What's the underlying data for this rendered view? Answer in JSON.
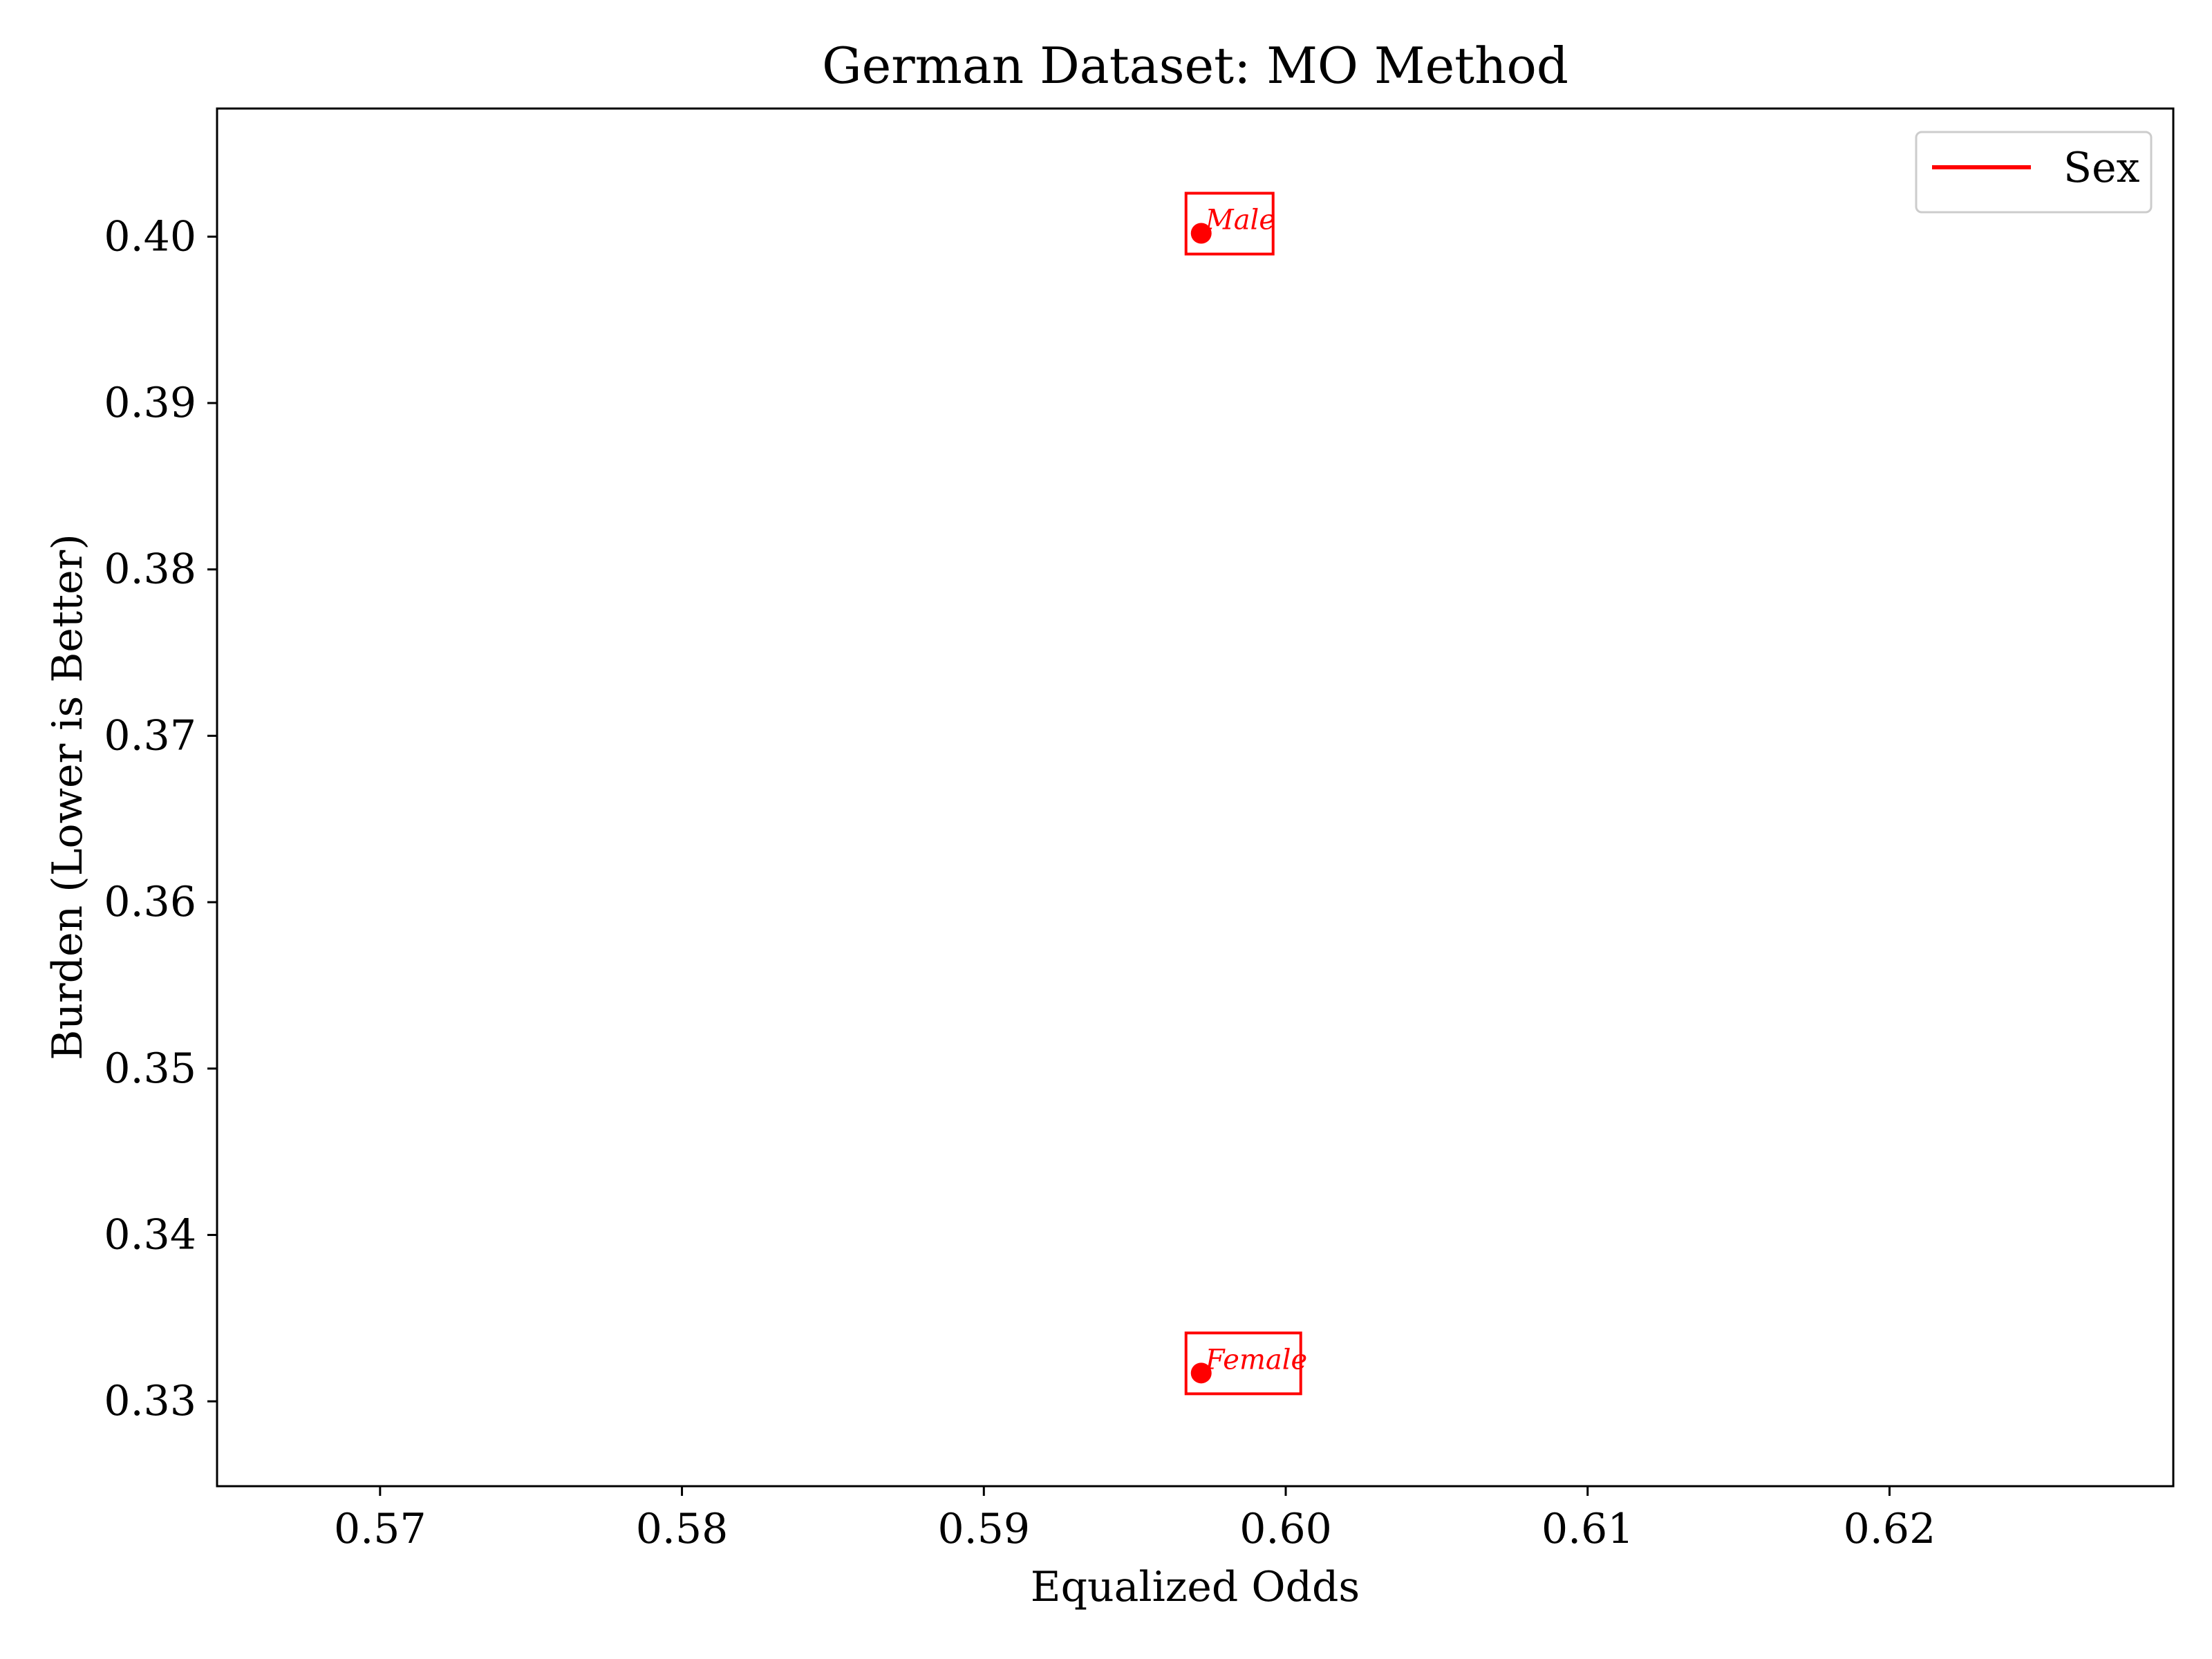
{
  "chart_data": {
    "type": "scatter",
    "title": "German Dataset: MO Method",
    "xlabel": "Equalized Odds",
    "ylabel": "Burden (Lower is Better)",
    "xlim": [
      0.5646,
      0.6294
    ],
    "ylim": [
      0.3249,
      0.4077
    ],
    "x_ticks": [
      0.57,
      0.58,
      0.59,
      0.6,
      0.61,
      0.62
    ],
    "x_tick_labels": [
      "0.57",
      "0.58",
      "0.59",
      "0.60",
      "0.61",
      "0.62"
    ],
    "y_ticks": [
      0.33,
      0.34,
      0.35,
      0.36,
      0.37,
      0.38,
      0.39,
      0.4
    ],
    "y_tick_labels": [
      "0.33",
      "0.34",
      "0.35",
      "0.36",
      "0.37",
      "0.38",
      "0.39",
      "0.40"
    ],
    "grid": false,
    "legend_position": "top-right",
    "series": [
      {
        "name": "Sex",
        "color": "#ff0000",
        "points": [
          {
            "x": 0.5972,
            "y": 0.4002,
            "label": "Male"
          },
          {
            "x": 0.5972,
            "y": 0.3317,
            "label": "Female"
          }
        ]
      }
    ]
  }
}
